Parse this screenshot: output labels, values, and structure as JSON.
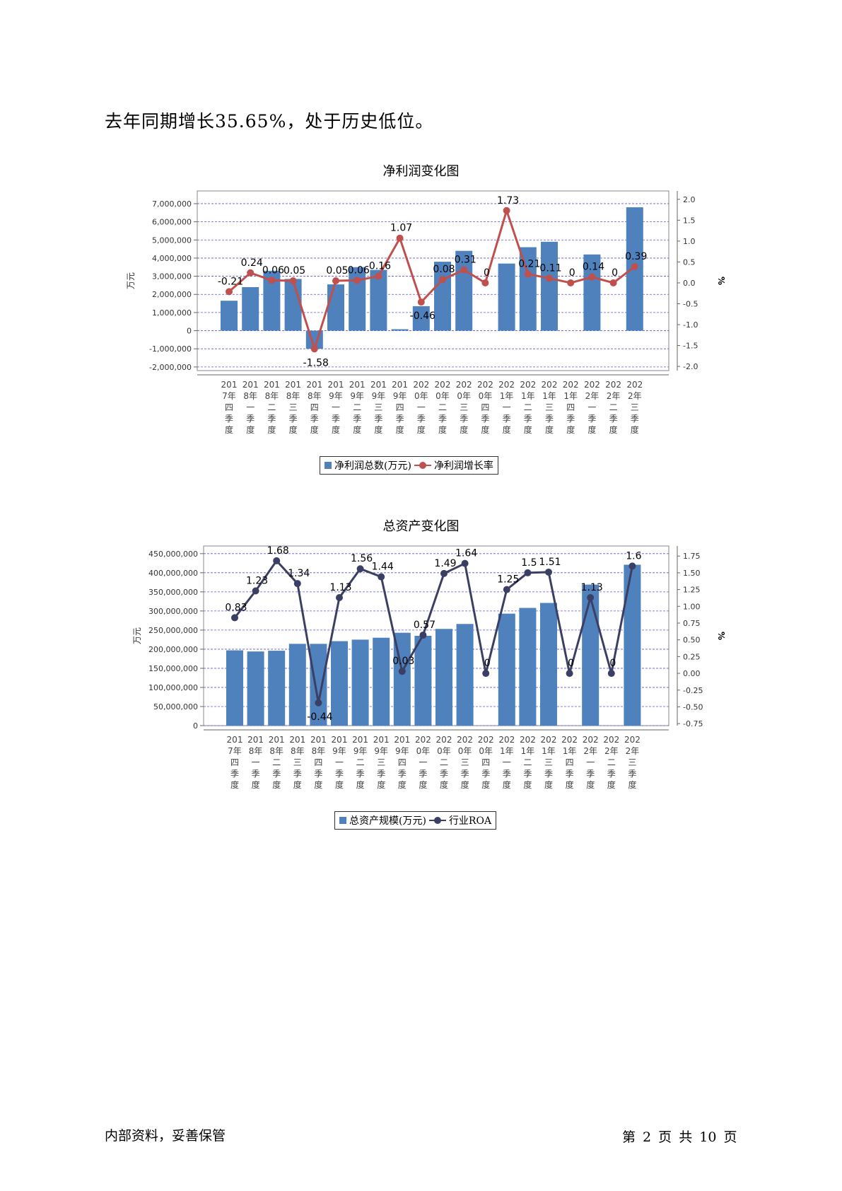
{
  "intro_text": "去年同期增长35.65%，处于历史低位。",
  "footer": {
    "left": "内部资料，妥善保管",
    "right": "第 2 页  共 10 页"
  },
  "colors": {
    "bar": "#4f81bd",
    "line1": "#c0504d",
    "line2": "#3b3f63",
    "grid": "#5a5ad2"
  },
  "charts": [
    {
      "title": "净利润变化图",
      "y_left_label": "万元",
      "y_right_label": "%",
      "legend": {
        "bar": "净利润总数(万元)",
        "line": "净利润增长率"
      }
    },
    {
      "title": "总资产变化图",
      "y_left_label": "万元",
      "y_right_label": "%",
      "legend": {
        "bar": "总资产规模(万元)",
        "line": "行业ROA"
      }
    }
  ],
  "chart_data": [
    {
      "type": "bar",
      "title": "净利润变化图",
      "categories": [
        [
          "201",
          "7年",
          "四",
          "季",
          "度"
        ],
        [
          "201",
          "8年",
          "一",
          "季",
          "度"
        ],
        [
          "201",
          "8年",
          "二",
          "季",
          "度"
        ],
        [
          "201",
          "8年",
          "三",
          "季",
          "度"
        ],
        [
          "201",
          "8年",
          "四",
          "季",
          "度"
        ],
        [
          "201",
          "9年",
          "一",
          "季",
          "度"
        ],
        [
          "201",
          "9年",
          "二",
          "季",
          "度"
        ],
        [
          "201",
          "9年",
          "三",
          "季",
          "度"
        ],
        [
          "201",
          "9年",
          "四",
          "季",
          "度"
        ],
        [
          "202",
          "0年",
          "一",
          "季",
          "度"
        ],
        [
          "202",
          "0年",
          "二",
          "季",
          "度"
        ],
        [
          "202",
          "0年",
          "三",
          "季",
          "度"
        ],
        [
          "202",
          "0年",
          "四",
          "季",
          "度"
        ],
        [
          "202",
          "1年",
          "一",
          "季",
          "度"
        ],
        [
          "202",
          "1年",
          "二",
          "季",
          "度"
        ],
        [
          "202",
          "1年",
          "三",
          "季",
          "度"
        ],
        [
          "202",
          "1年",
          "四",
          "季",
          "度"
        ],
        [
          "202",
          "2年",
          "一",
          "季",
          "度"
        ],
        [
          "202",
          "2年",
          "二",
          "季",
          "度"
        ],
        [
          "202",
          "2年",
          "三",
          "季",
          "度"
        ]
      ],
      "ylabel": "万元",
      "y2label": "%",
      "ylim": [
        -2200000,
        7700000
      ],
      "y2lim": [
        -2.1,
        2.2
      ],
      "yticks": [
        -2000000,
        -1000000,
        0,
        1000000,
        2000000,
        3000000,
        4000000,
        5000000,
        6000000,
        7000000
      ],
      "ytick_labels": [
        "-2,000,000",
        "-1,000,000",
        "0",
        "1,000,000",
        "2,000,000",
        "3,000,000",
        "4,000,000",
        "5,000,000",
        "6,000,000",
        "7,000,000"
      ],
      "y2ticks": [
        -2.0,
        -1.5,
        -1.0,
        -0.5,
        0.0,
        0.5,
        1.0,
        1.5,
        2.0
      ],
      "y2tick_labels": [
        "-2.0",
        "-1.5",
        "-1.0",
        "-0.5",
        "0.0",
        "0.5",
        "1.0",
        "1.5",
        "2.0"
      ],
      "grid": true,
      "series": [
        {
          "name": "净利润总数(万元)",
          "kind": "bar",
          "axis": "left",
          "values": [
            1650000,
            2400000,
            3300000,
            2850000,
            -1000000,
            2550000,
            3500000,
            3350000,
            80000,
            1350000,
            3800000,
            4400000,
            0,
            3700000,
            4600000,
            4900000,
            0,
            4200000,
            0,
            6800000
          ]
        },
        {
          "name": "净利润增长率",
          "kind": "line",
          "axis": "right",
          "values": [
            -0.21,
            0.24,
            0.06,
            0.05,
            -1.58,
            0.05,
            0.06,
            0.16,
            1.07,
            -0.46,
            0.08,
            0.31,
            0,
            1.73,
            0.21,
            0.11,
            0,
            0.14,
            0,
            0.39
          ],
          "labels": [
            "-0.21",
            "0.24",
            "0.06",
            "0.05",
            "-1.58",
            "0.05",
            "0.06",
            "0.16",
            "1.07",
            "-0.46",
            "0.08",
            "0.31",
            "0",
            "1.73",
            "0.21",
            "0.11",
            "0",
            "0.14",
            "0",
            "0.39"
          ]
        }
      ],
      "legend_position": "bottom"
    },
    {
      "type": "bar",
      "title": "总资产变化图",
      "categories": [
        [
          "201",
          "7年",
          "四",
          "季",
          "度"
        ],
        [
          "201",
          "8年",
          "一",
          "季",
          "度"
        ],
        [
          "201",
          "8年",
          "二",
          "季",
          "度"
        ],
        [
          "201",
          "8年",
          "三",
          "季",
          "度"
        ],
        [
          "201",
          "8年",
          "四",
          "季",
          "度"
        ],
        [
          "201",
          "9年",
          "一",
          "季",
          "度"
        ],
        [
          "201",
          "9年",
          "二",
          "季",
          "度"
        ],
        [
          "201",
          "9年",
          "三",
          "季",
          "度"
        ],
        [
          "201",
          "9年",
          "四",
          "季",
          "度"
        ],
        [
          "202",
          "0年",
          "一",
          "季",
          "度"
        ],
        [
          "202",
          "0年",
          "二",
          "季",
          "度"
        ],
        [
          "202",
          "0年",
          "三",
          "季",
          "度"
        ],
        [
          "202",
          "0年",
          "四",
          "季",
          "度"
        ],
        [
          "202",
          "1年",
          "一",
          "季",
          "度"
        ],
        [
          "202",
          "1年",
          "二",
          "季",
          "度"
        ],
        [
          "202",
          "1年",
          "三",
          "季",
          "度"
        ],
        [
          "202",
          "1年",
          "四",
          "季",
          "度"
        ],
        [
          "202",
          "2年",
          "一",
          "季",
          "度"
        ],
        [
          "202",
          "2年",
          "二",
          "季",
          "度"
        ],
        [
          "202",
          "2年",
          "三",
          "季",
          "度"
        ]
      ],
      "ylabel": "万元",
      "y2label": "%",
      "ylim": [
        0,
        470000000
      ],
      "y2lim": [
        -0.78,
        1.9
      ],
      "yticks": [
        0,
        50000000,
        100000000,
        150000000,
        200000000,
        250000000,
        300000000,
        350000000,
        400000000,
        450000000
      ],
      "ytick_labels": [
        "0",
        "50,000,000",
        "100,000,000",
        "150,000,000",
        "200,000,000",
        "250,000,000",
        "300,000,000",
        "350,000,000",
        "400,000,000",
        "450,000,000"
      ],
      "y2ticks": [
        -0.75,
        -0.5,
        -0.25,
        0.0,
        0.25,
        0.5,
        0.75,
        1.0,
        1.25,
        1.5,
        1.75
      ],
      "y2tick_labels": [
        "-0.75",
        "-0.50",
        "-0.25",
        "0.00",
        "0.25",
        "0.50",
        "0.75",
        "1.00",
        "1.25",
        "1.50",
        "1.75"
      ],
      "grid": true,
      "series": [
        {
          "name": "总资产规模(万元)",
          "kind": "bar",
          "axis": "left",
          "values": [
            197000000,
            194000000,
            196000000,
            214000000,
            214000000,
            221000000,
            225000000,
            230000000,
            243000000,
            235000000,
            253000000,
            266000000,
            0,
            293000000,
            308000000,
            321000000,
            0,
            369000000,
            0,
            421000000
          ]
        },
        {
          "name": "行业ROA",
          "kind": "line",
          "axis": "right",
          "values": [
            0.83,
            1.23,
            1.68,
            1.34,
            -0.44,
            1.13,
            1.56,
            1.44,
            0.03,
            0.57,
            1.49,
            1.64,
            0,
            1.25,
            1.5,
            1.51,
            0,
            1.13,
            0,
            1.6
          ],
          "labels": [
            "0.83",
            "1.23",
            "1.68",
            "1.34",
            "-0.44",
            "1.13",
            "1.56",
            "1.44",
            "0.03",
            "0.57",
            "1.49",
            "1.64",
            "0",
            "1.25",
            "1.5",
            "1.51",
            "0",
            "1.13",
            "0",
            "1.6"
          ]
        }
      ],
      "legend_position": "bottom"
    }
  ]
}
